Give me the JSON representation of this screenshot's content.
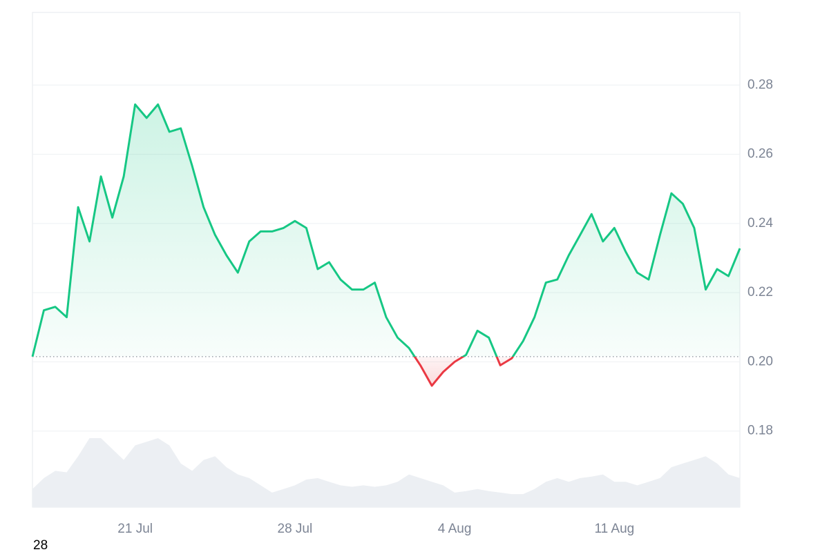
{
  "chart_data": {
    "type": "line",
    "categories": [
      null,
      null,
      null,
      null,
      null,
      null,
      null,
      null,
      null,
      "21 Jul",
      null,
      null,
      null,
      null,
      null,
      null,
      null,
      null,
      null,
      null,
      null,
      null,
      null,
      "28 Jul",
      null,
      null,
      null,
      null,
      null,
      null,
      null,
      null,
      null,
      null,
      null,
      null,
      null,
      "4 Aug",
      null,
      null,
      null,
      null,
      null,
      null,
      null,
      null,
      null,
      null,
      null,
      null,
      null,
      "11 Aug",
      null,
      null,
      null,
      null,
      null,
      null,
      null,
      null,
      null,
      null,
      null
    ],
    "values": [
      0.2015,
      0.2149,
      0.2159,
      0.2129,
      0.2447,
      0.2348,
      0.2536,
      0.2417,
      0.2536,
      0.2744,
      0.2705,
      0.2744,
      0.2665,
      0.2675,
      0.2566,
      0.2447,
      0.2367,
      0.2308,
      0.2258,
      0.2348,
      0.2377,
      0.2377,
      0.2387,
      0.2407,
      0.2387,
      0.2268,
      0.2288,
      0.2238,
      0.2209,
      0.2209,
      0.2229,
      0.2129,
      0.207,
      0.204,
      0.199,
      0.1931,
      0.1971,
      0.2,
      0.202,
      0.209,
      0.207,
      0.199,
      0.201,
      0.206,
      0.2129,
      0.2229,
      0.2238,
      0.2308,
      0.2367,
      0.2427,
      0.2348,
      0.2387,
      0.2318,
      0.2258,
      0.2238,
      0.2367,
      0.2487,
      0.2457,
      0.2387,
      0.2209,
      0.2268,
      0.2248,
      0.2328
    ],
    "volume": [
      25,
      40,
      50,
      48,
      70,
      95,
      95,
      80,
      65,
      85,
      90,
      95,
      85,
      60,
      50,
      65,
      70,
      55,
      45,
      40,
      30,
      20,
      25,
      30,
      38,
      40,
      35,
      30,
      28,
      30,
      28,
      30,
      35,
      45,
      40,
      35,
      30,
      20,
      22,
      25,
      22,
      20,
      18,
      18,
      25,
      35,
      40,
      35,
      40,
      42,
      45,
      35,
      35,
      30,
      35,
      40,
      55,
      60,
      65,
      70,
      60,
      45,
      40
    ],
    "baseline": 0.2015,
    "ylim": [
      0.158,
      0.301
    ],
    "yticks": [
      0.18,
      {
        "value": 0.2,
        "label": "0.20"
      },
      0.22,
      0.24,
      0.26,
      0.28
    ],
    "grid": true,
    "colors": {
      "up": "#16c784",
      "down": "#ea3943",
      "volume": "#eceff3"
    }
  },
  "footer_text": "28"
}
